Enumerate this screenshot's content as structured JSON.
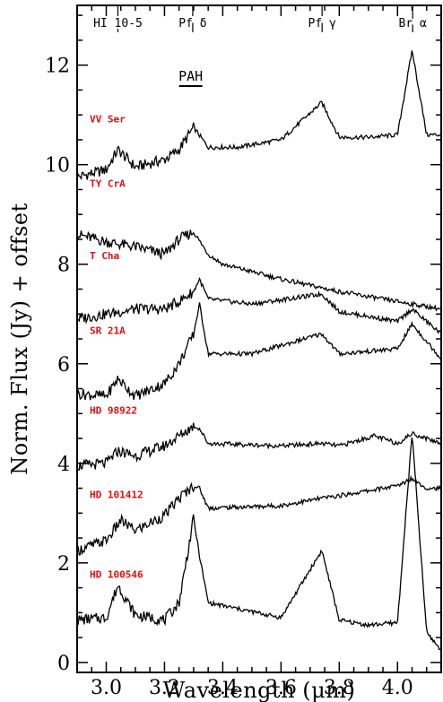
{
  "chart_data": {
    "type": "line",
    "xlabel": "Wavelength (μm)",
    "ylabel": "Norm. Flux (Jy) + offset",
    "xlim": [
      2.9,
      4.15
    ],
    "ylim": [
      -0.2,
      13.2
    ],
    "x_ticks": [
      3.0,
      3.2,
      3.4,
      3.6,
      3.8,
      4.0
    ],
    "x_tick_labels": [
      "3.0",
      "3.2",
      "3.4",
      "3.6",
      "3.8",
      "4.0"
    ],
    "y_ticks": [
      0,
      2,
      4,
      6,
      8,
      10,
      12
    ],
    "y_tick_labels": [
      "0",
      "2",
      "4",
      "6",
      "8",
      "10",
      "12"
    ],
    "grid": false,
    "line_markers": [
      {
        "label": "HI 10-5",
        "x": 3.04
      },
      {
        "label": "Pf δ",
        "x": 3.297
      },
      {
        "label": "Pf γ",
        "x": 3.741
      },
      {
        "label": "Br α",
        "x": 4.052
      }
    ],
    "annotation": {
      "label": "PAH",
      "x_start": 3.25,
      "x_end": 3.33
    },
    "label_color": "#e01010",
    "series": [
      {
        "name": "VV Ser",
        "label_y": 10.85,
        "x": [
          2.9,
          3.0,
          3.04,
          3.1,
          3.2,
          3.25,
          3.3,
          3.35,
          3.45,
          3.6,
          3.74,
          3.8,
          3.9,
          4.0,
          4.05,
          4.1,
          4.15
        ],
        "y": [
          9.75,
          9.9,
          10.3,
          9.95,
          10.1,
          10.3,
          10.75,
          10.35,
          10.35,
          10.5,
          11.25,
          10.55,
          10.55,
          10.6,
          12.3,
          10.6,
          10.6
        ]
      },
      {
        "name": "TY CrA",
        "label_y": 9.55,
        "x": [
          2.9,
          3.0,
          3.1,
          3.2,
          3.25,
          3.3,
          3.35,
          3.4,
          3.6,
          3.8,
          4.0,
          4.15
        ],
        "y": [
          8.6,
          8.45,
          8.35,
          8.2,
          8.5,
          8.65,
          8.2,
          8.0,
          7.7,
          7.45,
          7.25,
          7.1
        ]
      },
      {
        "name": "T Cha",
        "label_y": 8.1,
        "x": [
          2.9,
          3.0,
          3.1,
          3.2,
          3.25,
          3.3,
          3.32,
          3.35,
          3.5,
          3.74,
          3.8,
          4.0,
          4.05,
          4.15
        ],
        "y": [
          6.9,
          7.0,
          7.1,
          7.1,
          7.25,
          7.45,
          7.7,
          7.3,
          7.2,
          7.4,
          7.05,
          6.85,
          7.1,
          6.6
        ]
      },
      {
        "name": "SR 21A",
        "label_y": 6.6,
        "x": [
          2.9,
          3.0,
          3.04,
          3.1,
          3.2,
          3.25,
          3.3,
          3.32,
          3.35,
          3.5,
          3.74,
          3.8,
          4.0,
          4.05,
          4.15
        ],
        "y": [
          5.4,
          5.35,
          5.7,
          5.35,
          5.6,
          6.0,
          6.6,
          7.2,
          6.2,
          6.2,
          6.6,
          6.2,
          6.3,
          6.8,
          6.1
        ]
      },
      {
        "name": "HD 98922",
        "label_y": 5.0,
        "x": [
          2.9,
          3.0,
          3.04,
          3.1,
          3.2,
          3.25,
          3.3,
          3.32,
          3.35,
          3.6,
          3.74,
          3.8,
          3.92,
          4.0,
          4.05,
          4.15
        ],
        "y": [
          3.95,
          4.0,
          4.25,
          4.15,
          4.35,
          4.55,
          4.75,
          4.7,
          4.4,
          4.35,
          4.4,
          4.35,
          4.55,
          4.4,
          4.6,
          4.4
        ]
      },
      {
        "name": "HD 101412",
        "label_y": 3.3,
        "x": [
          2.9,
          3.0,
          3.05,
          3.1,
          3.2,
          3.25,
          3.3,
          3.32,
          3.35,
          3.6,
          3.74,
          3.8,
          4.0,
          4.05,
          4.1,
          4.15
        ],
        "y": [
          2.25,
          2.45,
          2.85,
          2.65,
          2.95,
          3.3,
          3.55,
          3.5,
          3.1,
          3.15,
          3.3,
          3.35,
          3.55,
          3.7,
          3.5,
          3.5
        ]
      },
      {
        "name": "HD 100546",
        "label_y": 1.7,
        "x": [
          2.9,
          3.0,
          3.04,
          3.1,
          3.2,
          3.25,
          3.3,
          3.32,
          3.35,
          3.6,
          3.74,
          3.8,
          3.9,
          4.0,
          4.05,
          4.1,
          4.15
        ],
        "y": [
          0.85,
          0.9,
          1.55,
          0.95,
          0.85,
          1.2,
          2.9,
          2.15,
          1.2,
          0.9,
          2.25,
          0.85,
          0.75,
          0.8,
          4.6,
          0.6,
          0.25
        ]
      }
    ]
  }
}
